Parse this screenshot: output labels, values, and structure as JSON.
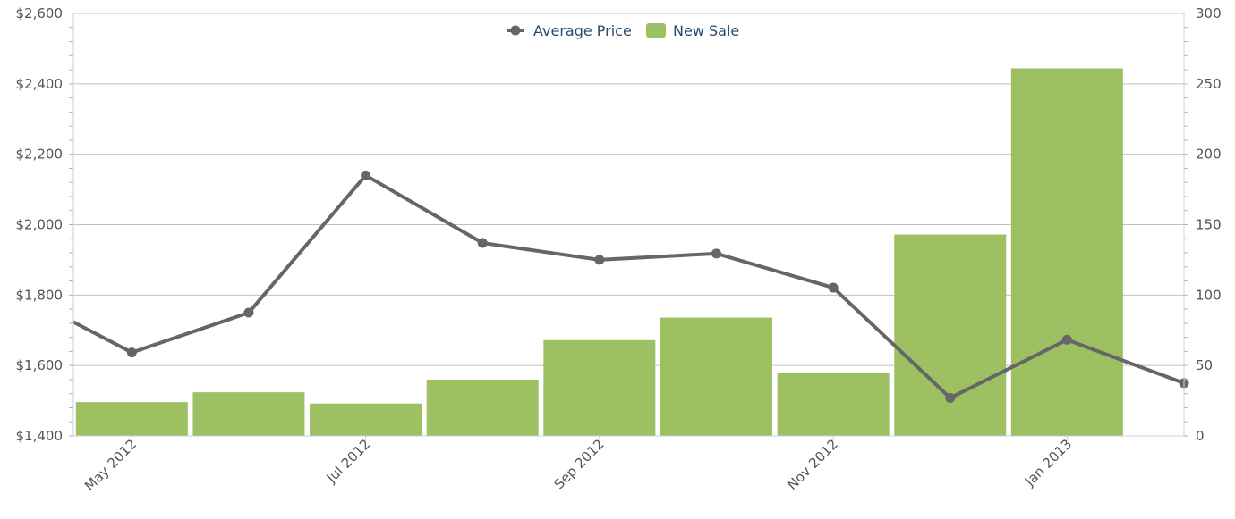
{
  "chart_data": {
    "type": "bar-line-combo",
    "legend": {
      "position": "top-center"
    },
    "grid": true,
    "x": [
      "Apr 2012",
      "May 2012",
      "Jun 2012",
      "Jul 2012",
      "Aug 2012",
      "Sep 2012",
      "Oct 2012",
      "Nov 2012",
      "Dec 2012",
      "Jan 2013",
      "Feb 2013"
    ],
    "x_tick_labels": [
      "May 2012",
      "Jul 2012",
      "Sep 2012",
      "Nov 2012",
      "Jan 2013"
    ],
    "y_left": {
      "min": 1400,
      "max": 2600,
      "ticks": [
        "$1,400",
        "$1,600",
        "$1,800",
        "$2,000",
        "$2,200",
        "$2,400",
        "$2,600"
      ]
    },
    "y_right": {
      "min": 0,
      "max": 300,
      "ticks": [
        "0",
        "50",
        "100",
        "150",
        "200",
        "250",
        "300"
      ]
    },
    "series": [
      {
        "name": "New Sale",
        "type": "bar",
        "axis": "right",
        "color": "#9dc063",
        "x": [
          "May 2012",
          "Jun 2012",
          "Jul 2012",
          "Aug 2012",
          "Sep 2012",
          "Oct 2012",
          "Nov 2012",
          "Dec 2012",
          "Jan 2013"
        ],
        "values": [
          24,
          31,
          23,
          40,
          68,
          84,
          45,
          143,
          261
        ]
      },
      {
        "name": "Average Price",
        "type": "line",
        "axis": "left",
        "color": "#666666",
        "x": [
          "Apr 2012",
          "May 2012",
          "Jun 2012",
          "Jul 2012",
          "Aug 2012",
          "Sep 2012",
          "Oct 2012",
          "Nov 2012",
          "Dec 2012",
          "Jan 2013",
          "Feb 2013"
        ],
        "values": [
          1810,
          1637,
          1750,
          2140,
          1948,
          1900,
          1918,
          1821,
          1508,
          1673,
          1550
        ]
      }
    ]
  }
}
